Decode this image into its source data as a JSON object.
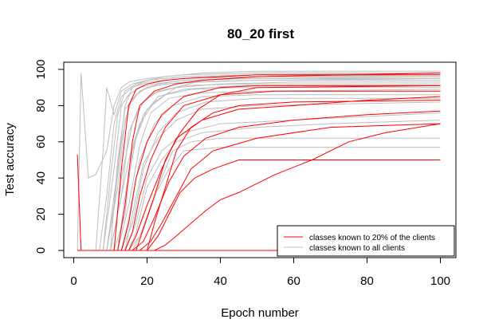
{
  "chart_data": {
    "type": "line",
    "title": "80_20 first",
    "xlabel": "Epoch number",
    "ylabel": "Test accuracy",
    "xlim": [
      0,
      100
    ],
    "ylim": [
      0,
      100
    ],
    "xticks": [
      "0",
      "20",
      "40",
      "60",
      "80",
      "100"
    ],
    "yticks": [
      "0",
      "20",
      "40",
      "60",
      "80",
      "100"
    ],
    "grid": false,
    "legend_position": "bottom-right",
    "legend": [
      {
        "label": "classes known to 20% of the clients",
        "color": "#ff0000"
      },
      {
        "label": "classes known to all clients",
        "color": "#bebebe"
      }
    ],
    "colors": {
      "red": "#ff0000",
      "gray": "#bebebe"
    },
    "series_groups": [
      {
        "group": "classes known to all clients",
        "color": "#bebebe",
        "series": [
          {
            "x": [
              1,
              2,
              4,
              6,
              9,
              11,
              13,
              15,
              20,
              30,
              50,
              100
            ],
            "y": [
              0,
              98,
              40,
              42,
              55,
              80,
              90,
              93,
              95,
              97,
              98,
              98
            ]
          },
          {
            "x": [
              1,
              6,
              8,
              9,
              11,
              13,
              16,
              20,
              30,
              50,
              100
            ],
            "y": [
              0,
              0,
              55,
              90,
              75,
              88,
              92,
              94,
              96,
              97,
              97
            ]
          },
          {
            "x": [
              1,
              7,
              9,
              11,
              13,
              16,
              20,
              30,
              50,
              100
            ],
            "y": [
              0,
              0,
              30,
              70,
              85,
              90,
              93,
              95,
              96,
              96
            ]
          },
          {
            "x": [
              1,
              8,
              10,
              12,
              14,
              17,
              20,
              30,
              50,
              100
            ],
            "y": [
              0,
              0,
              40,
              75,
              88,
              92,
              94,
              96,
              97,
              98
            ]
          },
          {
            "x": [
              1,
              8,
              11,
              13,
              15,
              18,
              22,
              30,
              50,
              100
            ],
            "y": [
              0,
              0,
              45,
              80,
              86,
              90,
              92,
              94,
              95,
              95
            ]
          },
          {
            "x": [
              1,
              9,
              11,
              13,
              15,
              18,
              22,
              30,
              50,
              100
            ],
            "y": [
              0,
              0,
              25,
              60,
              80,
              88,
              91,
              93,
              94,
              94
            ]
          },
          {
            "x": [
              1,
              9,
              12,
              14,
              16,
              19,
              23,
              30,
              50,
              100
            ],
            "y": [
              0,
              0,
              35,
              72,
              84,
              89,
              92,
              94,
              95,
              96
            ]
          },
          {
            "x": [
              1,
              10,
              12,
              14,
              17,
              20,
              25,
              35,
              50,
              100
            ],
            "y": [
              0,
              0,
              50,
              78,
              86,
              90,
              92,
              93,
              94,
              95
            ]
          },
          {
            "x": [
              1,
              10,
              13,
              15,
              18,
              22,
              28,
              40,
              60,
              100
            ],
            "y": [
              0,
              0,
              30,
              65,
              80,
              87,
              90,
              92,
              93,
              93
            ]
          },
          {
            "x": [
              1,
              11,
              13,
              16,
              19,
              23,
              30,
              45,
              100
            ],
            "y": [
              0,
              0,
              40,
              70,
              82,
              88,
              91,
              92,
              92
            ]
          },
          {
            "x": [
              1,
              11,
              14,
              16,
              19,
              23,
              30,
              45,
              100
            ],
            "y": [
              0,
              0,
              20,
              55,
              75,
              85,
              89,
              91,
              91
            ]
          },
          {
            "x": [
              1,
              12,
              14,
              17,
              20,
              25,
              32,
              45,
              100
            ],
            "y": [
              0,
              0,
              30,
              62,
              78,
              86,
              89,
              90,
              90
            ]
          },
          {
            "x": [
              1,
              12,
              15,
              18,
              21,
              26,
              34,
              50,
              100
            ],
            "y": [
              0,
              0,
              25,
              58,
              76,
              84,
              87,
              88,
              89
            ]
          },
          {
            "x": [
              1,
              13,
              15,
              18,
              22,
              27,
              35,
              50,
              100
            ],
            "y": [
              0,
              0,
              18,
              50,
              70,
              80,
              85,
              86,
              86
            ]
          },
          {
            "x": [
              1,
              13,
              16,
              19,
              23,
              28,
              36,
              50,
              100
            ],
            "y": [
              0,
              0,
              15,
              45,
              65,
              76,
              82,
              84,
              84
            ]
          },
          {
            "x": [
              1,
              14,
              16,
              19,
              23,
              28,
              35,
              50,
              100
            ],
            "y": [
              0,
              0,
              20,
              48,
              62,
              72,
              78,
              80,
              82
            ]
          },
          {
            "x": [
              1,
              14,
              17,
              20,
              24,
              30,
              40,
              60,
              80,
              100
            ],
            "y": [
              0,
              0,
              15,
              40,
              55,
              65,
              70,
              72,
              74,
              76
            ]
          },
          {
            "x": [
              1,
              15,
              17,
              20,
              24,
              28,
              35,
              50,
              70,
              100
            ],
            "y": [
              0,
              0,
              10,
              35,
              50,
              60,
              65,
              68,
              70,
              72
            ]
          },
          {
            "x": [
              1,
              15,
              18,
              22,
              26,
              30,
              40,
              55,
              100
            ],
            "y": [
              0,
              0,
              8,
              30,
              45,
              55,
              57,
              57,
              57
            ]
          },
          {
            "x": [
              1,
              16,
              19,
              23,
              27,
              32,
              40,
              55,
              100
            ],
            "y": [
              0,
              0,
              12,
              35,
              55,
              60,
              62,
              62,
              62
            ]
          },
          {
            "x": [
              1,
              9,
              12,
              14,
              16,
              20,
              25,
              35,
              50,
              100
            ],
            "y": [
              0,
              0,
              45,
              80,
              90,
              94,
              96,
              98,
              99,
              99
            ]
          },
          {
            "x": [
              1,
              10,
              12,
              15,
              18,
              22,
              28,
              35,
              50,
              100
            ],
            "y": [
              0,
              0,
              20,
              50,
              70,
              82,
              90,
              94,
              96,
              97
            ]
          }
        ]
      },
      {
        "group": "classes known to 20% of the clients",
        "color": "#ff0000",
        "series": [
          {
            "x": [
              1,
              2,
              3,
              100
            ],
            "y": [
              53,
              0,
              0,
              0
            ]
          },
          {
            "x": [
              1,
              11,
              13,
              15,
              17,
              20,
              25,
              30,
              40,
              50,
              100
            ],
            "y": [
              0,
              0,
              45,
              80,
              89,
              92,
              94,
              95,
              96,
              97,
              97
            ]
          },
          {
            "x": [
              1,
              12,
              14,
              16,
              18,
              22,
              28,
              35,
              50,
              100
            ],
            "y": [
              0,
              0,
              25,
              60,
              80,
              88,
              92,
              94,
              96,
              98
            ]
          },
          {
            "x": [
              1,
              13,
              15,
              17,
              20,
              24,
              30,
              40,
              50,
              100
            ],
            "y": [
              0,
              0,
              15,
              40,
              60,
              75,
              85,
              90,
              91,
              91
            ]
          },
          {
            "x": [
              1,
              14,
              16,
              18,
              21,
              25,
              30,
              40,
              55,
              100
            ],
            "y": [
              0,
              0,
              10,
              30,
              50,
              68,
              80,
              86,
              88,
              88
            ]
          },
          {
            "x": [
              1,
              15,
              17,
              20,
              24,
              28,
              35,
              45,
              60,
              80,
              100
            ],
            "y": [
              0,
              0,
              8,
              25,
              45,
              62,
              72,
              78,
              80,
              83,
              85
            ]
          },
          {
            "x": [
              1,
              16,
              19,
              22,
              26,
              30,
              36,
              45,
              60,
              80,
              100
            ],
            "y": [
              0,
              0,
              5,
              18,
              38,
              52,
              62,
              68,
              72,
              75,
              77
            ]
          },
          {
            "x": [
              1,
              18,
              21,
              24,
              28,
              32,
              38,
              50,
              70,
              100
            ],
            "y": [
              0,
              0,
              5,
              15,
              30,
              45,
              55,
              62,
              68,
              70
            ]
          },
          {
            "x": [
              1,
              20,
              23,
              26,
              29,
              33,
              38,
              45,
              100
            ],
            "y": [
              0,
              0,
              8,
              20,
              32,
              40,
              45,
              50,
              50
            ]
          },
          {
            "x": [
              1,
              22,
              25,
              28,
              32,
              36,
              40,
              45,
              55,
              65,
              75,
              85,
              100
            ],
            "y": [
              0,
              0,
              3,
              8,
              15,
              22,
              28,
              32,
              42,
              50,
              60,
              65,
              70
            ]
          },
          {
            "x": [
              1,
              20,
              22,
              25,
              28,
              32,
              38,
              45,
              60,
              100
            ],
            "y": [
              0,
              0,
              15,
              35,
              55,
              68,
              76,
              80,
              82,
              83
            ]
          },
          {
            "x": [
              1,
              17,
              19,
              22,
              25,
              29,
              34,
              40,
              50,
              100
            ],
            "y": [
              0,
              0,
              12,
              30,
              50,
              65,
              78,
              86,
              90,
              91
            ]
          }
        ]
      }
    ]
  }
}
